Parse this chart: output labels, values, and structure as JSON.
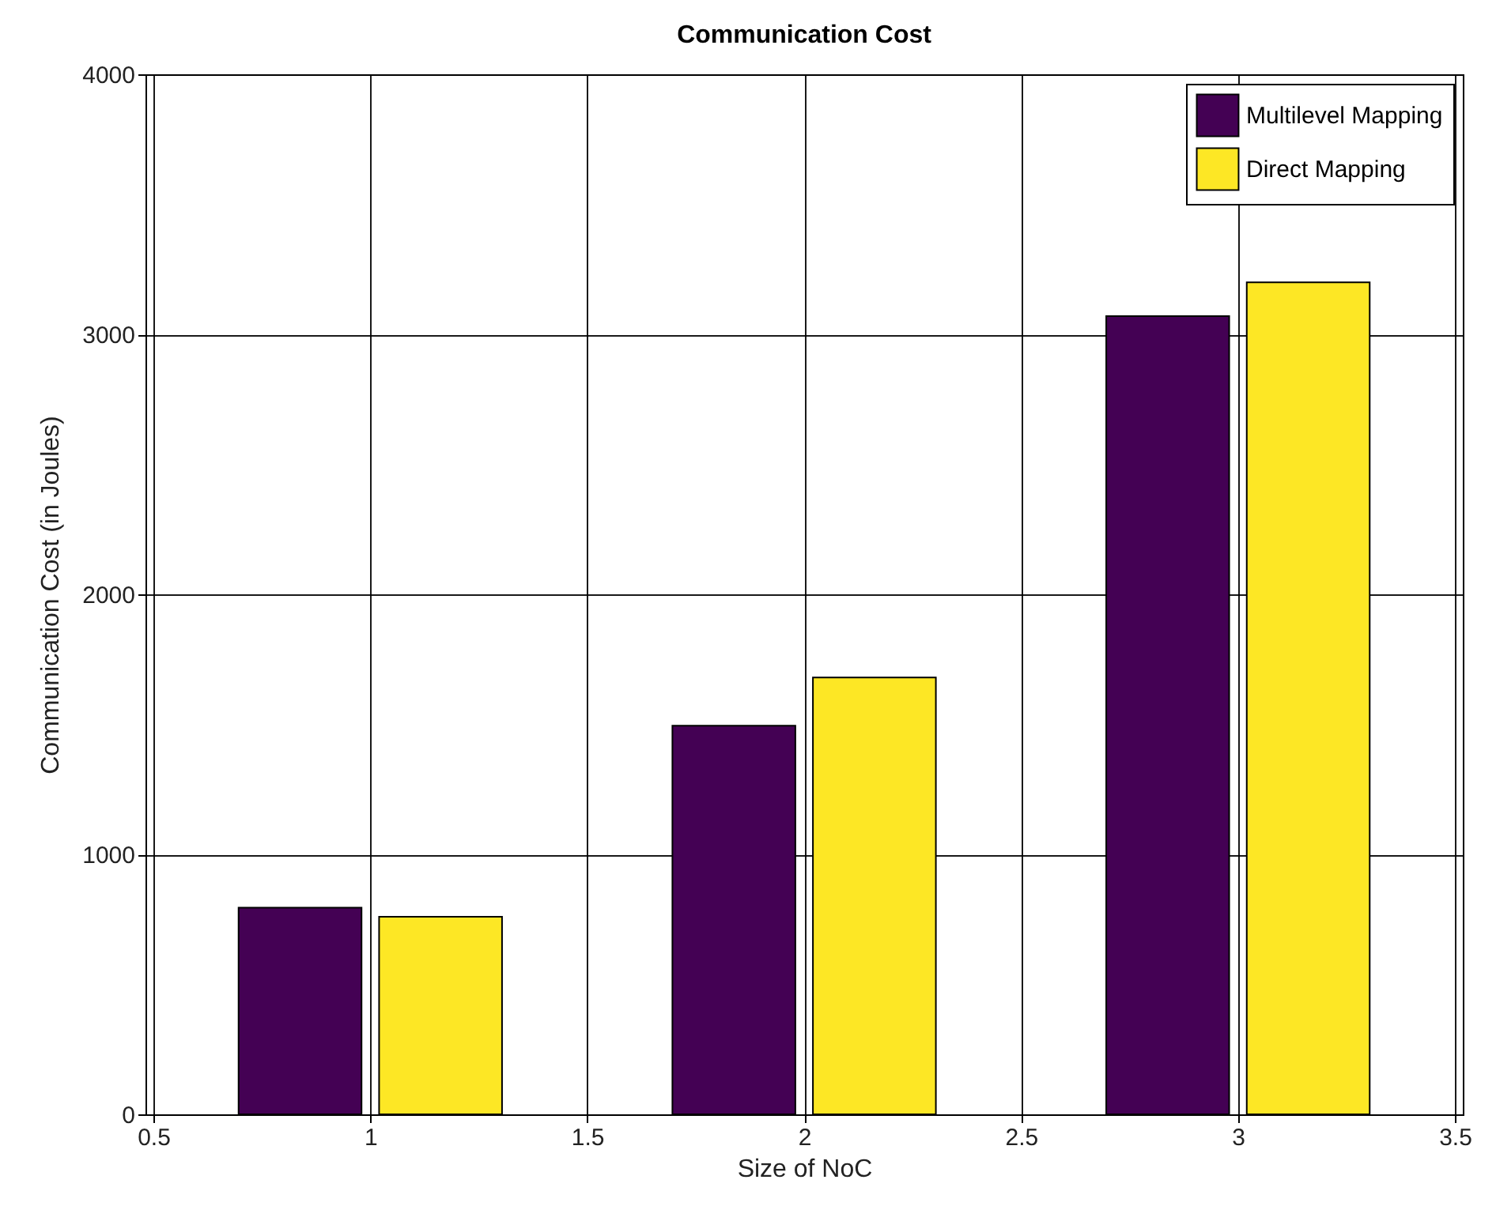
{
  "chart_data": {
    "type": "bar",
    "title": "Communication Cost",
    "xlabel": "Size of NoC",
    "ylabel": "Communication Cost (in Joules)",
    "x": [
      1,
      2,
      3
    ],
    "series": [
      {
        "name": "Multilevel Mapping",
        "color": "#440154",
        "values": [
          795,
          1495,
          3070
        ]
      },
      {
        "name": "Direct Mapping",
        "color": "#fde725",
        "values": [
          760,
          1680,
          3200
        ]
      }
    ],
    "xlim": [
      0.5,
      3.5
    ],
    "xticks": [
      0.5,
      1,
      1.5,
      2,
      2.5,
      3,
      3.5
    ],
    "ylim": [
      0,
      4000
    ],
    "yticks": [
      0,
      1000,
      2000,
      3000,
      4000
    ],
    "grid": true,
    "legend": "top right"
  }
}
